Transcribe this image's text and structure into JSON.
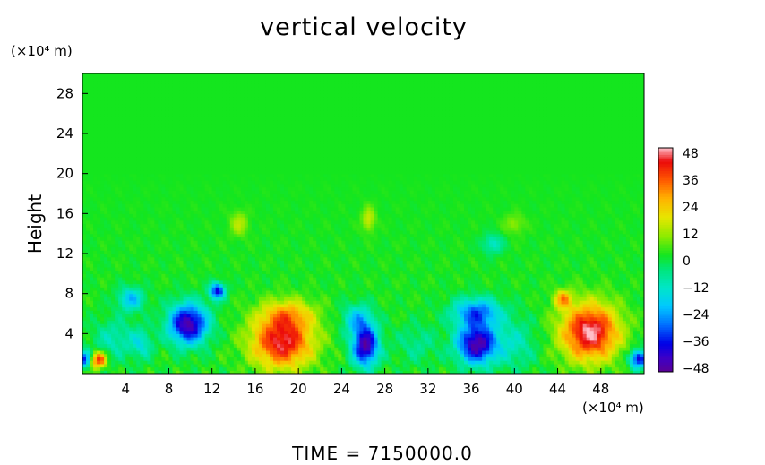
{
  "chart_data": {
    "type": "heatmap",
    "title": "vertical velocity",
    "ylabel": "Height",
    "xlabel": "",
    "x_unit": "(×10⁴ m)",
    "y_unit": "(×10⁴ m)",
    "xlim": [
      0,
      52
    ],
    "ylim": [
      0,
      30
    ],
    "x_ticks": [
      "4",
      "8",
      "12",
      "16",
      "20",
      "24",
      "28",
      "32",
      "36",
      "40",
      "44",
      "48"
    ],
    "y_ticks": [
      "4",
      "8",
      "12",
      "16",
      "20",
      "24",
      "28"
    ],
    "colorbar": {
      "range": [
        -48,
        48
      ],
      "ticks": [
        "48",
        "36",
        "24",
        "12",
        "0",
        "−12",
        "−24",
        "−36",
        "−48"
      ]
    },
    "background_value": 2,
    "features": [
      {
        "x": 1.5,
        "y": 1.4,
        "value": 40,
        "sx": 0.7,
        "sy": 0.8
      },
      {
        "x": 0.2,
        "y": 1.5,
        "value": -32,
        "sx": 0.5,
        "sy": 0.8
      },
      {
        "x": 9.8,
        "y": 5.0,
        "value": -46,
        "sx": 1.8,
        "sy": 2.0
      },
      {
        "x": 12.5,
        "y": 8.3,
        "value": -38,
        "sx": 0.7,
        "sy": 0.8
      },
      {
        "x": 4.5,
        "y": 7.5,
        "value": -20,
        "sx": 1.2,
        "sy": 1.2
      },
      {
        "x": 3.0,
        "y": 3.5,
        "value": -10,
        "sx": 2.0,
        "sy": 2.0
      },
      {
        "x": 5.5,
        "y": 3.0,
        "value": -12,
        "sx": 1.0,
        "sy": 1.5
      },
      {
        "x": 18.5,
        "y": 3.2,
        "value": 44,
        "sx": 2.8,
        "sy": 2.6
      },
      {
        "x": 19.0,
        "y": 6.0,
        "value": 20,
        "sx": 2.5,
        "sy": 1.5
      },
      {
        "x": 26.2,
        "y": 2.8,
        "value": -46,
        "sx": 1.2,
        "sy": 2.0
      },
      {
        "x": 25.5,
        "y": 5.5,
        "value": -18,
        "sx": 1.4,
        "sy": 1.5
      },
      {
        "x": 36.5,
        "y": 3.0,
        "value": -46,
        "sx": 1.8,
        "sy": 2.0
      },
      {
        "x": 36.5,
        "y": 6.2,
        "value": -28,
        "sx": 2.2,
        "sy": 1.4
      },
      {
        "x": 40.0,
        "y": 3.0,
        "value": -10,
        "sx": 2.0,
        "sy": 2.5
      },
      {
        "x": 47.0,
        "y": 4.2,
        "value": 48,
        "sx": 2.6,
        "sy": 2.8
      },
      {
        "x": 44.5,
        "y": 7.5,
        "value": 26,
        "sx": 0.8,
        "sy": 0.9
      },
      {
        "x": 51.5,
        "y": 1.5,
        "value": -40,
        "sx": 0.8,
        "sy": 0.9
      },
      {
        "x": 31.0,
        "y": 3.0,
        "value": -6,
        "sx": 2.0,
        "sy": 2.0
      },
      {
        "x": 14.5,
        "y": 15.0,
        "value": 14,
        "sx": 0.8,
        "sy": 1.2
      },
      {
        "x": 26.5,
        "y": 15.5,
        "value": 16,
        "sx": 0.6,
        "sy": 1.2
      },
      {
        "x": 38.0,
        "y": 13.0,
        "value": -12,
        "sx": 1.0,
        "sy": 1.0
      },
      {
        "x": 40.0,
        "y": 15.0,
        "value": 10,
        "sx": 1.0,
        "sy": 1.0
      }
    ]
  },
  "footer": {
    "time_text": "TIME  =  7150000.0"
  }
}
